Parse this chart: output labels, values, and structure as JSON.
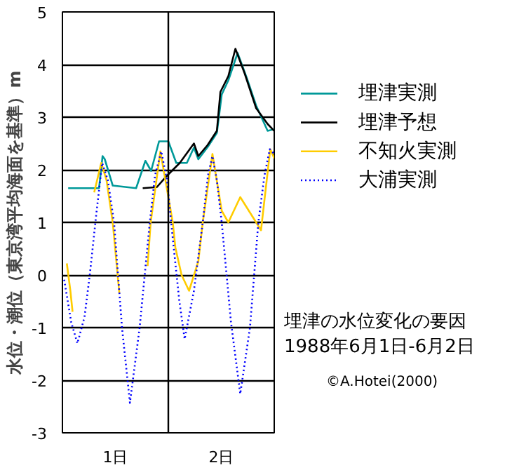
{
  "chart_data": {
    "type": "line",
    "ylabel": "水位・潮位（東京湾平均海面を基準）m",
    "xlim": [
      "1988-06-01T00:00",
      "1988-06-03T00:00"
    ],
    "xticks": [
      {
        "value": "1988-06-01T12:00",
        "label": "1日"
      },
      {
        "value": "1988-06-02T12:00",
        "label": "2日"
      }
    ],
    "ylim": [
      -3,
      5
    ],
    "yticks": [
      -3,
      -2,
      -1,
      0,
      1,
      2,
      3,
      4,
      5
    ],
    "grid": "y",
    "legend": "right",
    "line_style": "solid",
    "marker": "none",
    "ref_lines": [
      {
        "axis": "x",
        "value": "1988-06-02T00:00",
        "label": null,
        "color": "#000000"
      }
    ],
    "annotations": [
      "埋津の水位変化の要因",
      "1988年6月1日-6月2日",
      "©A.Hotei(2000)"
    ],
    "series": [
      {
        "name": "埋津実測",
        "color": "#009999",
        "x": [
          "1988-06-01T01:18",
          "1988-06-01T08:18",
          "1988-06-01T09:06",
          "1988-06-01T09:36",
          "1988-06-01T11:24",
          "1988-06-01T16:42",
          "1988-06-01T18:48",
          "1988-06-01T20:06",
          "1988-06-01T21:54",
          "1988-06-02T00:00",
          "1988-06-02T01:48",
          "1988-06-02T04:12",
          "1988-06-02T05:48",
          "1988-06-02T06:48",
          "1988-06-02T08:54",
          "1988-06-02T11:00",
          "1988-06-02T12:06",
          "1988-06-02T13:36",
          "1988-06-02T15:42",
          "1988-06-02T17:48",
          "1988-06-02T19:54",
          "1988-06-02T22:30",
          "1988-06-03T00:00"
        ],
        "values": [
          1.65,
          1.65,
          2.26,
          2.2,
          1.7,
          1.65,
          2.17,
          1.98,
          2.54,
          2.54,
          2.13,
          2.13,
          2.42,
          2.2,
          2.43,
          2.7,
          3.43,
          3.7,
          4.22,
          3.74,
          3.22,
          2.74,
          2.77
        ]
      },
      {
        "name": "埋津予想",
        "color": "#000000",
        "x": [
          "1988-06-01T18:12",
          "1988-06-01T21:24",
          "1988-06-01T23:30",
          "1988-06-02T02:36",
          "1988-06-02T05:48",
          "1988-06-02T06:48",
          "1988-06-02T08:54",
          "1988-06-02T11:00",
          "1988-06-02T11:48",
          "1988-06-02T13:36",
          "1988-06-02T15:12",
          "1988-06-02T17:18",
          "1988-06-02T19:54",
          "1988-06-02T22:30",
          "1988-06-03T00:00"
        ],
        "values": [
          1.65,
          1.67,
          1.87,
          2.13,
          2.5,
          2.26,
          2.47,
          2.74,
          3.48,
          3.78,
          4.3,
          3.83,
          3.17,
          2.87,
          2.74
        ]
      },
      {
        "name": "不知火実測",
        "color": "#ffcc00",
        "x": [
          "1988-06-01T01:00",
          "1988-06-01T01:48",
          "1988-06-01T02:18",
          "1988-06-01T04:30",
          "1988-06-01T07:12",
          "1988-06-01T08:48",
          "1988-06-01T10:00",
          "1988-06-01T11:24",
          "1988-06-01T12:54",
          "1988-06-01T16:00",
          "1988-06-01T19:18",
          "1988-06-01T20:00",
          "1988-06-01T22:12",
          "1988-06-02T01:00",
          "1988-06-02T01:36",
          "1988-06-02T03:00",
          "1988-06-02T04:42",
          "1988-06-02T06:48",
          "1988-06-02T07:48",
          "1988-06-02T10:00",
          "1988-06-02T12:06",
          "1988-06-02T13:36",
          "1988-06-02T16:18",
          "1988-06-02T19:54",
          "1988-06-02T21:00",
          "1988-06-02T23:06",
          "1988-06-03T00:00"
        ],
        "values": [
          0.22,
          -0.3,
          -0.7,
          null,
          1.57,
          2.13,
          1.8,
          1.0,
          -0.35,
          null,
          0.17,
          1.0,
          2.35,
          1.0,
          0.52,
          0.0,
          -0.3,
          0.26,
          1.0,
          2.3,
          1.22,
          1.0,
          1.48,
          1.0,
          0.85,
          2.39,
          2.22
        ]
      },
      {
        "name": "大浦実測",
        "color": "#0000ff",
        "line_style": "dotted",
        "x": [
          "1988-06-01T00:24",
          "1988-06-01T02:00",
          "1988-06-01T03:24",
          "1988-06-01T05:00",
          "1988-06-01T06:12",
          "1988-06-01T07:36",
          "1988-06-01T09:00",
          "1988-06-01T10:18",
          "1988-06-01T11:42",
          "1988-06-01T13:30",
          "1988-06-01T15:18",
          "1988-06-01T17:30",
          "1988-06-01T19:48",
          "1988-06-01T21:00",
          "1988-06-01T22:24",
          "1988-06-01T23:42",
          "1988-06-02T01:00",
          "1988-06-02T02:30",
          "1988-06-02T03:42",
          "1988-06-02T05:48",
          "1988-06-02T07:48",
          "1988-06-02T09:00",
          "1988-06-02T10:00",
          "1988-06-02T11:00",
          "1988-06-02T12:06",
          "1988-06-02T14:12",
          "1988-06-02T16:18",
          "1988-06-02T18:30",
          "1988-06-02T20:24",
          "1988-06-02T21:48",
          "1988-06-02T23:00",
          "1988-06-03T00:00"
        ],
        "values": [
          -0.09,
          -0.9,
          -1.3,
          -0.8,
          0.0,
          1.1,
          2.13,
          1.8,
          1.0,
          -1.0,
          -2.43,
          -1.0,
          1.0,
          1.9,
          2.35,
          1.8,
          0.7,
          -0.5,
          -1.22,
          -0.3,
          1.0,
          1.9,
          2.26,
          1.8,
          1.0,
          -0.9,
          -2.26,
          -1.0,
          1.0,
          1.9,
          2.39,
          2.3
        ]
      }
    ]
  }
}
